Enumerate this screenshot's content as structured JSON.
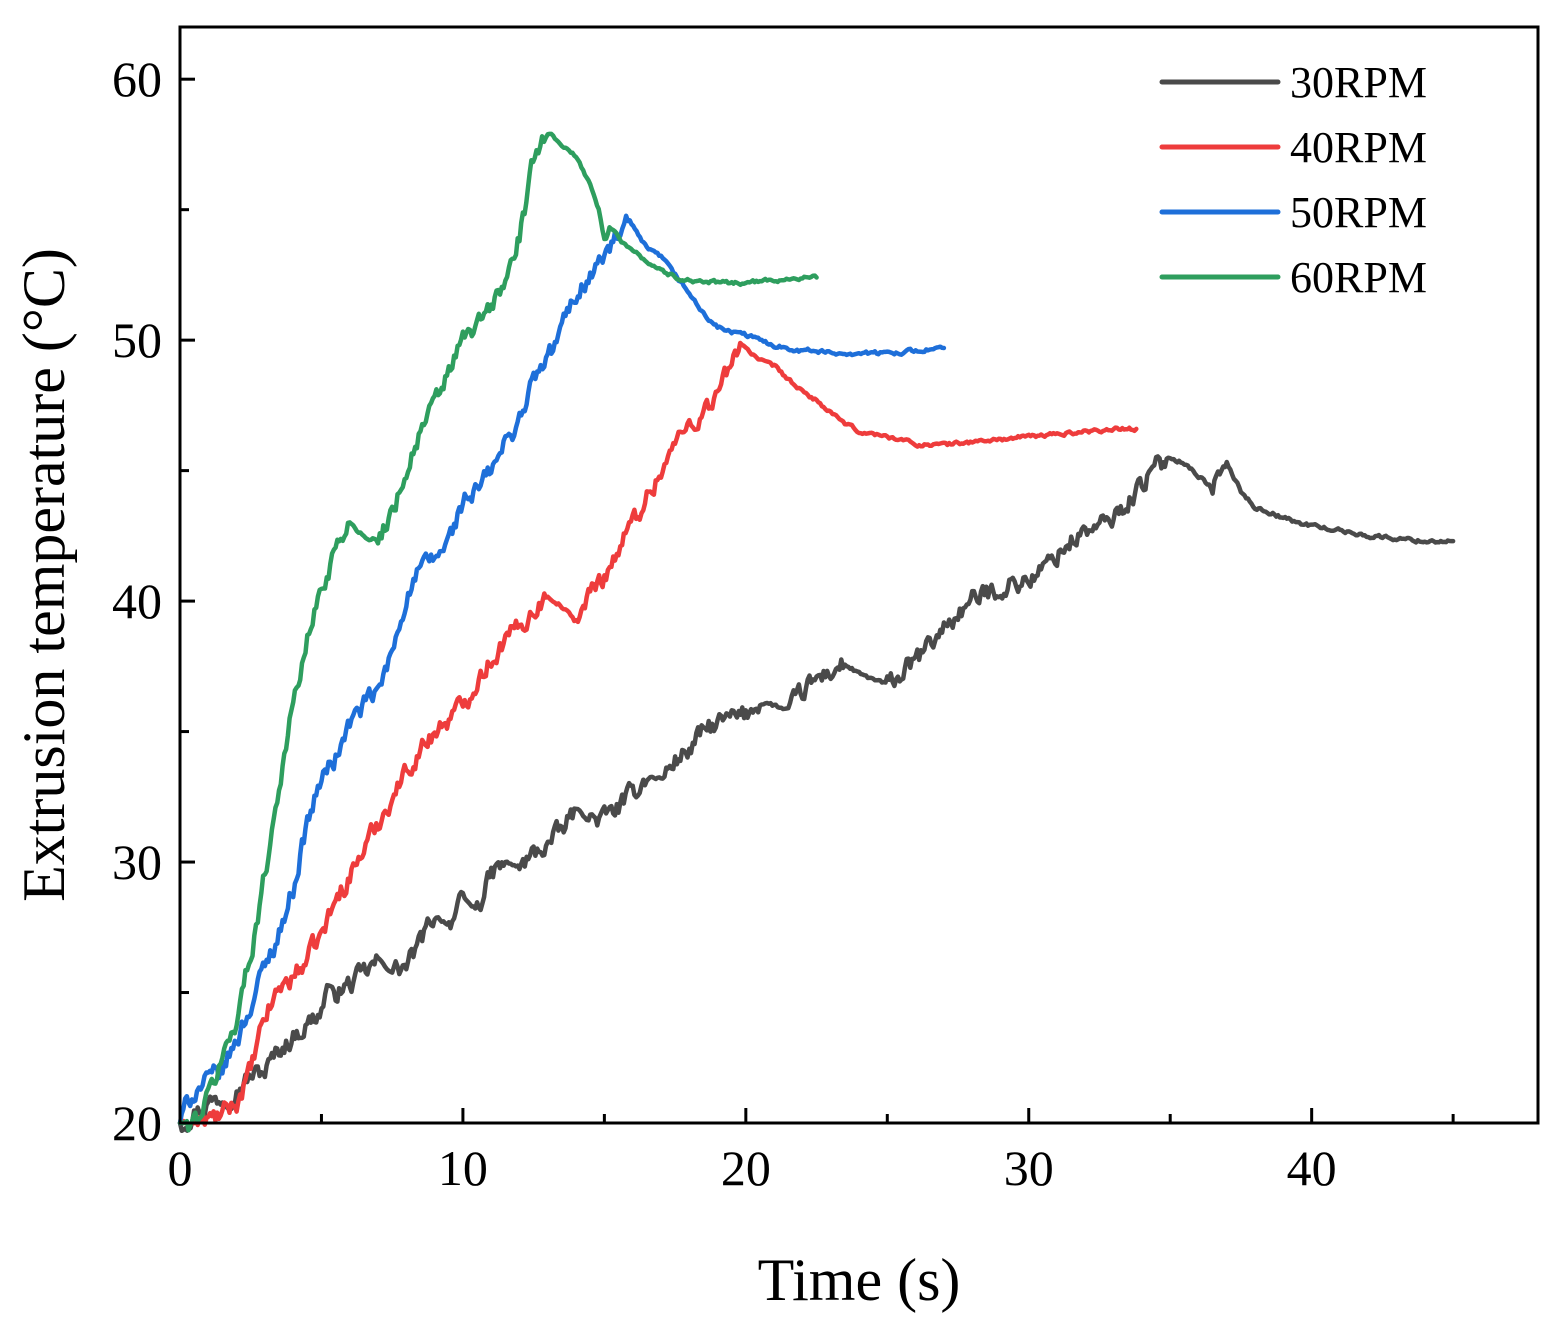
{
  "chart_data": {
    "type": "line",
    "title": "",
    "xlabel": "Time (s)",
    "ylabel": "Extrusion temperature (°C)",
    "xlim": [
      0,
      48
    ],
    "ylim": [
      20,
      62
    ],
    "xticks": [
      0,
      10,
      20,
      30,
      40
    ],
    "xtick_labels": [
      "0",
      "10",
      "20",
      "30",
      "40"
    ],
    "yticks": [
      20,
      30,
      40,
      50,
      60
    ],
    "ytick_labels": [
      "20",
      "30",
      "40",
      "50",
      "60"
    ],
    "x_minor_ticks": [
      5,
      15,
      25,
      35,
      45
    ],
    "y_minor_ticks": [
      25,
      35,
      45,
      55
    ],
    "grid": false,
    "legend_position": "top-right",
    "series": [
      {
        "name": "30RPM",
        "color": "#4a4a4a",
        "x": [
          0,
          0.5,
          1.0,
          1.5,
          2.0,
          2.5,
          3.0,
          3.5,
          4.0,
          4.5,
          5.0,
          5.2,
          5.5,
          6.0,
          6.5,
          7.0,
          7.5,
          8.0,
          8.5,
          9.0,
          9.5,
          10.0,
          10.5,
          11.0,
          11.5,
          12.0,
          12.5,
          13.0,
          13.5,
          14.0,
          14.5,
          15.0,
          15.5,
          16.0,
          16.5,
          17.0,
          17.5,
          18.0,
          18.5,
          19.0,
          19.5,
          20.0,
          20.5,
          21.0,
          21.5,
          22.0,
          22.5,
          23.0,
          23.5,
          24.0,
          24.5,
          25.0,
          25.5,
          26.0,
          26.5,
          27.0,
          27.5,
          28.0,
          28.5,
          29.0,
          29.5,
          30.0,
          30.5,
          31.0,
          31.5,
          32.0,
          32.5,
          33.0,
          33.5,
          34.0,
          34.5,
          35.0,
          35.5,
          36.0,
          36.5,
          37.0,
          37.5,
          38.0,
          38.5,
          39.0,
          39.5,
          40.0,
          40.5,
          41.0,
          41.5,
          42.0,
          43.0,
          44.0,
          45.0
        ],
        "y": [
          20.0,
          20.4,
          20.8,
          21.0,
          21.3,
          21.8,
          22.0,
          22.8,
          23.3,
          23.8,
          24.3,
          25.3,
          25.0,
          25.3,
          25.7,
          26.2,
          25.8,
          26.0,
          26.9,
          28.0,
          27.6,
          28.5,
          28.2,
          29.5,
          30.0,
          29.8,
          30.3,
          30.7,
          31.2,
          32.0,
          31.6,
          31.7,
          32.1,
          32.6,
          33.3,
          33.2,
          33.9,
          34.3,
          35.0,
          35.3,
          35.5,
          35.6,
          36.2,
          36.0,
          35.8,
          36.5,
          37.0,
          37.3,
          37.6,
          37.2,
          37.0,
          36.8,
          37.2,
          37.7,
          38.3,
          39.0,
          39.5,
          40.0,
          40.3,
          40.5,
          40.7,
          40.8,
          41.2,
          41.8,
          42.3,
          42.7,
          42.8,
          43.2,
          43.8,
          44.5,
          45.1,
          45.5,
          45.3,
          44.8,
          44.3,
          45.3,
          44.2,
          43.6,
          43.4,
          43.2,
          43.0,
          42.9,
          42.8,
          42.7,
          42.6,
          42.5,
          42.4,
          42.3,
          42.3
        ]
      },
      {
        "name": "40RPM",
        "color": "#ee3c3c",
        "x": [
          0,
          0.5,
          1.0,
          1.5,
          2.0,
          2.5,
          3.0,
          3.5,
          4.0,
          4.5,
          5.0,
          5.5,
          6.0,
          6.5,
          7.0,
          7.5,
          8.0,
          8.5,
          9.0,
          9.5,
          10.0,
          10.5,
          11.0,
          11.5,
          12.0,
          12.5,
          13.0,
          13.5,
          14.0,
          14.5,
          15.0,
          15.5,
          16.0,
          16.5,
          17.0,
          17.5,
          18.0,
          18.5,
          19.0,
          19.5,
          19.8,
          20.2,
          20.5,
          21.0,
          21.5,
          22.0,
          22.5,
          23.0,
          23.5,
          24.0,
          24.5,
          25.0,
          25.5,
          26.0,
          27.0,
          28.0,
          29.0,
          30.0,
          31.0,
          32.0,
          33.0,
          33.8
        ],
        "y": [
          20.0,
          20.0,
          20.1,
          20.3,
          20.8,
          22.0,
          24.0,
          25.2,
          25.6,
          26.3,
          27.2,
          28.5,
          29.5,
          30.5,
          31.5,
          32.5,
          33.5,
          34.3,
          35.0,
          35.5,
          36.0,
          37.0,
          37.8,
          38.5,
          39.0,
          39.7,
          40.2,
          39.8,
          39.2,
          40.3,
          41.0,
          42.0,
          43.0,
          44.0,
          45.0,
          46.0,
          46.8,
          47.2,
          48.0,
          49.0,
          50.0,
          49.5,
          49.2,
          49.0,
          48.5,
          48.0,
          47.7,
          47.2,
          46.8,
          46.5,
          46.4,
          46.3,
          46.2,
          46.0,
          46.0,
          46.1,
          46.2,
          46.3,
          46.4,
          46.5,
          46.6,
          46.6
        ]
      },
      {
        "name": "50RPM",
        "color": "#1e6fd9",
        "x": [
          0,
          0.3,
          0.6,
          1.0,
          1.5,
          2.0,
          2.5,
          3.0,
          3.5,
          4.0,
          4.5,
          5.0,
          5.5,
          6.0,
          6.5,
          7.0,
          7.5,
          8.0,
          8.5,
          9.0,
          9.5,
          10.0,
          10.5,
          11.0,
          11.5,
          12.0,
          12.5,
          13.0,
          13.5,
          14.0,
          14.5,
          15.0,
          15.5,
          15.9,
          16.2,
          16.5,
          17.0,
          17.5,
          18.0,
          18.5,
          19.0,
          19.5,
          20.0,
          20.5,
          21.0,
          21.5,
          22.0,
          22.5,
          23.0,
          24.0,
          25.0,
          26.0,
          27.0
        ],
        "y": [
          20.0,
          20.9,
          21.3,
          21.6,
          22.0,
          23.2,
          24.5,
          26.0,
          27.3,
          29.0,
          31.5,
          33.2,
          34.0,
          35.3,
          36.0,
          36.5,
          38.0,
          40.2,
          41.2,
          41.6,
          42.3,
          43.8,
          44.2,
          45.0,
          46.0,
          47.0,
          48.5,
          49.2,
          50.5,
          51.8,
          52.5,
          53.2,
          54.0,
          54.5,
          54.0,
          53.5,
          53.2,
          52.5,
          51.8,
          51.0,
          50.5,
          50.3,
          50.2,
          50.0,
          49.8,
          49.7,
          49.6,
          49.6,
          49.5,
          49.5,
          49.5,
          49.6,
          49.7
        ]
      },
      {
        "name": "60RPM",
        "color": "#2e9e5e",
        "x": [
          0,
          0.3,
          0.6,
          1.0,
          1.5,
          2.0,
          2.5,
          3.0,
          3.5,
          4.0,
          4.5,
          5.0,
          5.5,
          6.0,
          6.5,
          7.0,
          7.5,
          8.0,
          8.5,
          9.0,
          9.5,
          10.0,
          10.5,
          11.0,
          11.5,
          12.0,
          12.3,
          12.6,
          13.0,
          13.5,
          14.0,
          14.5,
          14.8,
          15.0,
          15.3,
          15.6,
          16.0,
          16.5,
          17.0,
          17.5,
          18.0,
          19.0,
          20.0,
          21.0,
          22.0,
          22.5
        ],
        "y": [
          20.0,
          20.0,
          20.2,
          21.0,
          22.5,
          24.0,
          26.5,
          29.5,
          33.0,
          36.0,
          38.5,
          40.5,
          42.0,
          43.0,
          42.5,
          42.3,
          43.5,
          45.0,
          46.5,
          47.5,
          48.8,
          50.0,
          50.5,
          51.3,
          52.2,
          54.0,
          55.5,
          57.5,
          58.0,
          57.5,
          57.0,
          56.0,
          55.0,
          53.8,
          54.2,
          53.8,
          53.5,
          53.0,
          52.7,
          52.4,
          52.3,
          52.2,
          52.2,
          52.3,
          52.4,
          52.4
        ]
      }
    ]
  }
}
